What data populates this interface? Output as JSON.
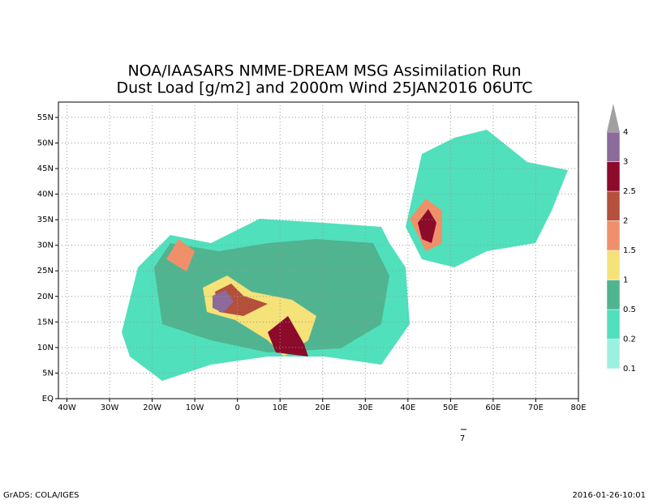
{
  "chart_data": {
    "type": "map",
    "title": "NOA/IAASARS NMME-DREAM MSG Assimilation Run",
    "subtitle": "Dust Load [g/m2] and 2000m Wind 25JAN2016 06UTC",
    "xlim": [
      -42,
      80
    ],
    "ylim": [
      0,
      58
    ],
    "xticks": [
      {
        "value": -40,
        "label": "40W"
      },
      {
        "value": -30,
        "label": "30W"
      },
      {
        "value": -20,
        "label": "20W"
      },
      {
        "value": -10,
        "label": "10W"
      },
      0,
      {
        "value": 10,
        "label": "10E"
      },
      {
        "value": 20,
        "label": "20E"
      },
      {
        "value": 30,
        "label": "30E"
      },
      {
        "value": 40,
        "label": "40E"
      },
      {
        "value": 50,
        "label": "50E"
      },
      {
        "value": 60,
        "label": "60E"
      },
      {
        "value": 70,
        "label": "70E"
      },
      {
        "value": 80,
        "label": "80E"
      }
    ],
    "yticks": [
      {
        "value": 0,
        "label": "EQ"
      },
      {
        "value": 5,
        "label": "5N"
      },
      {
        "value": 10,
        "label": "10N"
      },
      {
        "value": 15,
        "label": "15N"
      },
      {
        "value": 20,
        "label": "20N"
      },
      {
        "value": 25,
        "label": "25N"
      },
      {
        "value": 30,
        "label": "30N"
      },
      {
        "value": 35,
        "label": "35N"
      },
      {
        "value": 40,
        "label": "40N"
      },
      {
        "value": 45,
        "label": "45N"
      },
      {
        "value": 50,
        "label": "50N"
      },
      {
        "value": 55,
        "label": "55N"
      }
    ],
    "grid": true,
    "colorbar": {
      "levels": [
        0.1,
        0.2,
        0.5,
        1,
        1.5,
        2,
        2.5,
        3,
        4
      ],
      "colors": [
        "#9cf0e0",
        "#50e0bc",
        "#50b490",
        "#f5e278",
        "#f0906a",
        "#b4503c",
        "#8c0a2a",
        "#8c6a9c",
        "#a0a0a0"
      ]
    },
    "reference_vector": "7",
    "footer_left": "GrADS: COLA/IGES",
    "footer_right": "2016-01-26-10:01"
  }
}
